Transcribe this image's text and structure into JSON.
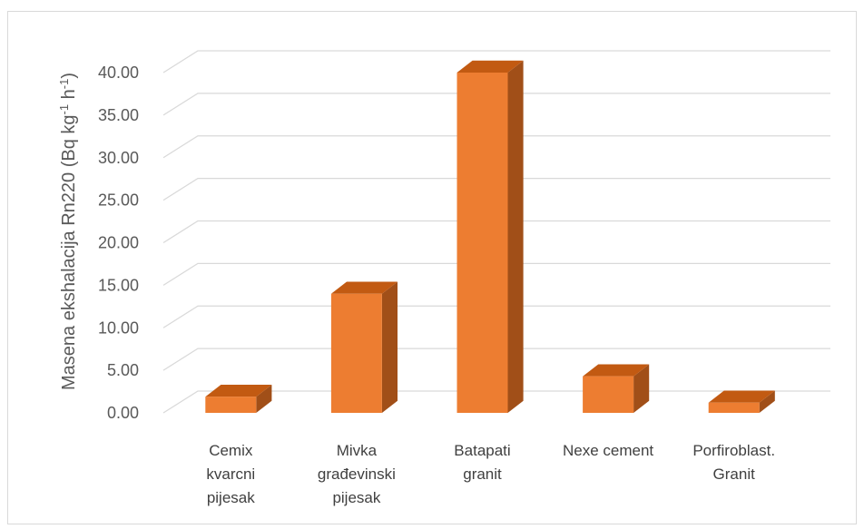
{
  "chart_data": {
    "type": "bar",
    "categories": [
      [
        "Cemix",
        "kvarcni",
        "pijesak"
      ],
      [
        "Mivka",
        "građevinski",
        "pijesak"
      ],
      [
        "Batapati",
        "granit"
      ],
      [
        "Nexe cement"
      ],
      [
        "Porfiroblast.",
        "Granit"
      ]
    ],
    "values": [
      1.9,
      14.0,
      40.0,
      4.3,
      1.2
    ],
    "ylabel": {
      "main": "Masena ekshalacija Rn220 (Bq kg",
      "sup1": "-1",
      "mid": " h",
      "sup2": "-1",
      "end": ")"
    },
    "ylim": [
      0,
      40
    ],
    "yticks": [
      "0.00",
      "5.00",
      "10.00",
      "15.00",
      "20.00",
      "25.00",
      "30.00",
      "35.00",
      "40.00"
    ],
    "grid": true,
    "colors": {
      "front": "#ED7D31",
      "top": "#C25A12",
      "side": "#A14F18",
      "grid": "#d9d9d9"
    }
  }
}
